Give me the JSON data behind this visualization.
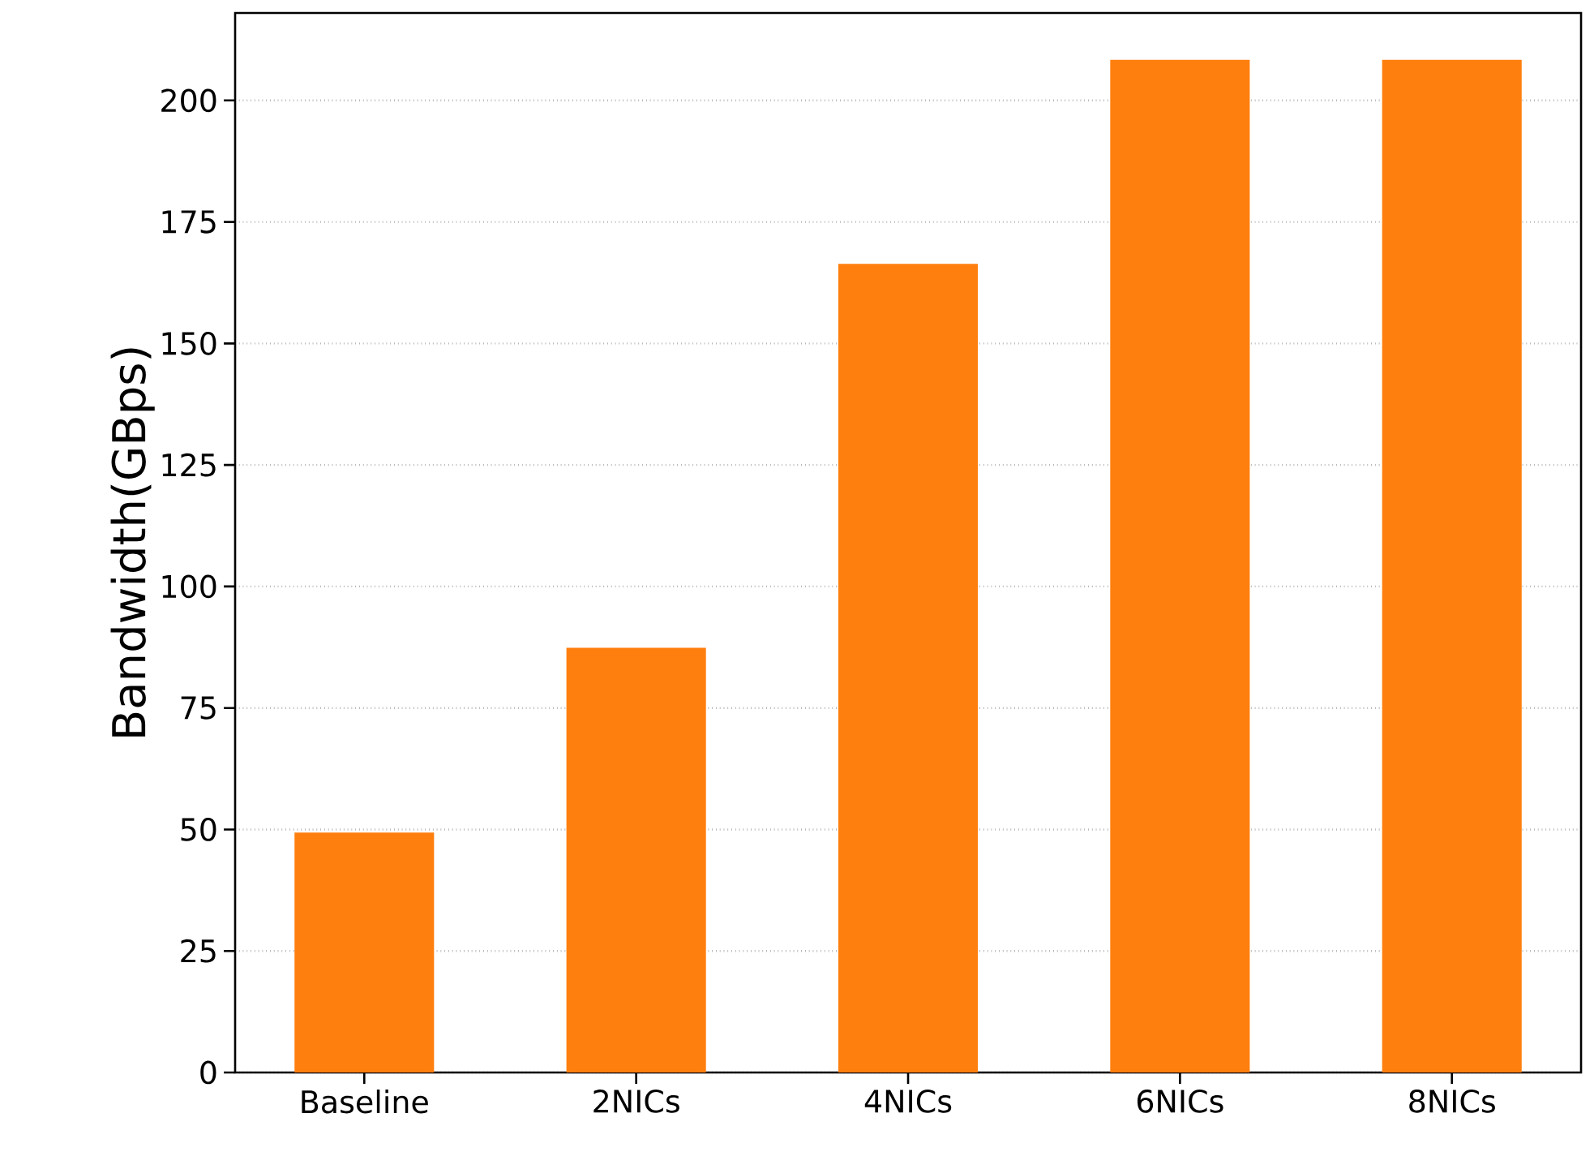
{
  "chart_data": {
    "type": "bar",
    "ylabel": "Bandwidth(GBps)",
    "categories": [
      "Baseline",
      "2NICs",
      "4NICs",
      "6NICs",
      "8NICs"
    ],
    "values": [
      49,
      87,
      166,
      208,
      208
    ],
    "color": "#ff7f0e",
    "ylim": [
      0,
      218
    ],
    "yticks": [
      0,
      25,
      50,
      75,
      100,
      125,
      150,
      175,
      200
    ],
    "grid": "y"
  }
}
